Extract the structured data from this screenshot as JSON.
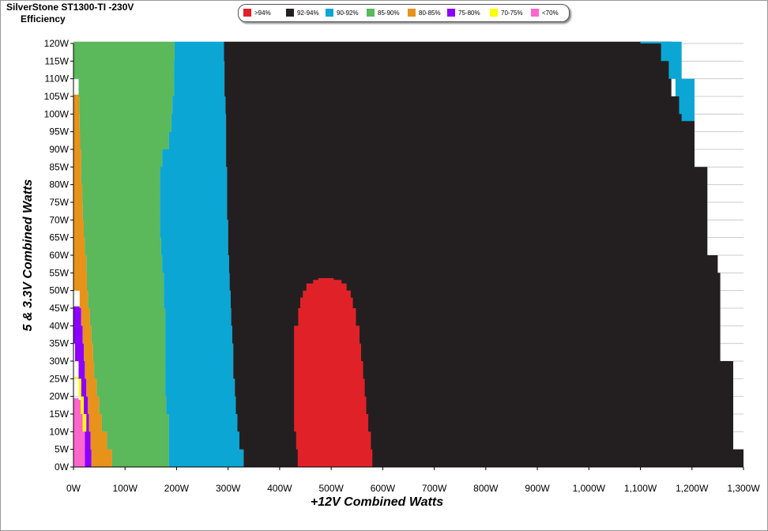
{
  "header": {
    "title": "SilverStone  ST1300-TI -230V",
    "subtitle": "Efficiency"
  },
  "legend": [
    {
      "label": ">94%",
      "color": "#e02228"
    },
    {
      "label": "92-94%",
      "color": "#231f20"
    },
    {
      "label": "90-92%",
      "color": "#0ba6d4"
    },
    {
      "label": "85-90%",
      "color": "#5bb85b"
    },
    {
      "label": "80-85%",
      "color": "#e8921c"
    },
    {
      "label": "75-80%",
      "color": "#8b00ff"
    },
    {
      "label": "70-75%",
      "color": "#ffff00"
    },
    {
      "label": "<70%",
      "color": "#ff66cc"
    }
  ],
  "chart_data": {
    "type": "area",
    "title": "SilverStone  ST1300-TI -230V Efficiency",
    "xlabel": "+12V Combined Watts",
    "ylabel": "5 & 3.3V Combined Watts",
    "xlim": [
      0,
      1300
    ],
    "ylim": [
      0,
      120
    ],
    "xticks": [
      "0W",
      "100W",
      "200W",
      "300W",
      "400W",
      "500W",
      "600W",
      "700W",
      "800W",
      "900W",
      "1,000W",
      "1,100W",
      "1,200W",
      "1,300W"
    ],
    "yticks": [
      "0W",
      "5W",
      "10W",
      "15W",
      "20W",
      "25W",
      "30W",
      "35W",
      "40W",
      "45W",
      "50W",
      "55W",
      "60W",
      "65W",
      "70W",
      "75W",
      "80W",
      "85W",
      "90W",
      "95W",
      "100W",
      "105W",
      "110W",
      "115W",
      "120W"
    ],
    "grid": true,
    "legend_position": "top",
    "bands": [
      {
        "name": "<70%",
        "color": "#ff66cc",
        "y": [
          0,
          5,
          10,
          15,
          19
        ],
        "left": [
          0,
          0,
          0,
          0,
          0
        ],
        "right": [
          22,
          22,
          18,
          15,
          10
        ]
      },
      {
        "name": "70-75%",
        "color": "#ffff00",
        "y": [
          10,
          15,
          20,
          25
        ],
        "left": [
          18,
          14,
          10,
          0
        ],
        "right": [
          25,
          20,
          15,
          10
        ]
      },
      {
        "name": "75-80%",
        "color": "#8b00ff",
        "y": [
          0,
          5,
          10,
          15,
          20,
          25,
          30,
          35,
          40,
          45
        ],
        "left": [
          22,
          22,
          25,
          20,
          15,
          10,
          3,
          0,
          0,
          0
        ],
        "right": [
          35,
          33,
          30,
          28,
          25,
          22,
          20,
          18,
          15,
          12
        ]
      },
      {
        "name": "80-85%",
        "color": "#e8921c",
        "y": [
          0,
          5,
          10,
          15,
          20,
          25,
          30,
          35,
          40,
          45,
          50,
          55,
          60,
          65,
          70,
          75,
          80,
          85,
          90,
          95,
          100,
          105
        ],
        "left": [
          35,
          33,
          30,
          28,
          25,
          22,
          20,
          18,
          15,
          12,
          0,
          0,
          0,
          0,
          0,
          0,
          0,
          0,
          0,
          0,
          0,
          0
        ],
        "right": [
          75,
          65,
          55,
          50,
          45,
          40,
          38,
          35,
          32,
          28,
          26,
          25,
          22,
          20,
          18,
          17,
          15,
          15,
          13,
          12,
          11,
          10
        ]
      },
      {
        "name": "85-90%",
        "color": "#5bb85b",
        "y": [
          0,
          5,
          10,
          15,
          20,
          25,
          30,
          35,
          40,
          45,
          50,
          55,
          60,
          65,
          70,
          75,
          80,
          85,
          90,
          95,
          100,
          105,
          110,
          115,
          120
        ],
        "left": [
          75,
          65,
          55,
          50,
          45,
          40,
          38,
          35,
          32,
          28,
          26,
          25,
          22,
          20,
          18,
          17,
          15,
          15,
          13,
          12,
          11,
          10,
          0,
          0,
          0
        ],
        "right": [
          185,
          185,
          185,
          180,
          178,
          178,
          178,
          178,
          178,
          175,
          175,
          172,
          170,
          168,
          168,
          168,
          168,
          172,
          185,
          190,
          192,
          195,
          195,
          196,
          196
        ]
      },
      {
        "name": "90-92%",
        "color": "#0ba6d4",
        "y": [
          0,
          5,
          10,
          15,
          20,
          25,
          30,
          35,
          40,
          45,
          50,
          55,
          60,
          65,
          70,
          75,
          80,
          85,
          90,
          95,
          100,
          105,
          110,
          115,
          120
        ],
        "left": [
          185,
          185,
          185,
          180,
          178,
          178,
          178,
          178,
          178,
          175,
          175,
          172,
          170,
          168,
          168,
          168,
          168,
          172,
          185,
          190,
          192,
          195,
          195,
          196,
          196
        ],
        "right": [
          330,
          322,
          318,
          315,
          313,
          310,
          310,
          308,
          306,
          305,
          303,
          302,
          300,
          300,
          298,
          298,
          298,
          296,
          296,
          296,
          295,
          293,
          293,
          292,
          292
        ]
      },
      {
        "name": "92-94%",
        "color": "#231f20",
        "y": [
          0,
          5,
          10,
          15,
          20,
          25,
          30,
          35,
          40,
          45,
          50,
          55,
          60,
          65,
          70,
          75,
          80,
          85,
          90,
          95,
          100,
          105,
          110,
          115,
          120
        ],
        "left": [
          330,
          322,
          318,
          315,
          313,
          310,
          310,
          308,
          306,
          305,
          303,
          302,
          300,
          300,
          298,
          298,
          298,
          296,
          296,
          296,
          295,
          293,
          293,
          292,
          292
        ],
        "right": [
          1300,
          1280,
          1280,
          1280,
          1280,
          1280,
          1255,
          1255,
          1255,
          1255,
          1255,
          1250,
          1230,
          1230,
          1230,
          1230,
          1230,
          1205,
          1205,
          1205,
          1205,
          1160,
          1160,
          1160,
          1160
        ]
      },
      {
        "name": "90-92% (upper right)",
        "color": "#0ba6d4",
        "y": [
          98,
          100,
          105,
          110,
          115,
          120
        ],
        "left": [
          1180,
          1175,
          1168,
          1155,
          1140,
          1100
        ],
        "right": [
          1205,
          1205,
          1205,
          1180,
          1180,
          1180
        ]
      },
      {
        "name": ">94%",
        "color": "#e02228",
        "y": [
          0,
          5,
          10,
          15,
          20,
          25,
          30,
          35,
          40,
          45,
          48,
          50,
          52,
          53
        ],
        "left": [
          435,
          432,
          428,
          428,
          428,
          428,
          428,
          428,
          436,
          440,
          445,
          452,
          465,
          475
        ],
        "right": [
          580,
          577,
          572,
          568,
          565,
          562,
          558,
          555,
          548,
          542,
          538,
          530,
          520,
          505
        ]
      }
    ]
  },
  "axes": {
    "x_title": "+12V Combined Watts",
    "y_title": "5 & 3.3V Combined Watts"
  }
}
